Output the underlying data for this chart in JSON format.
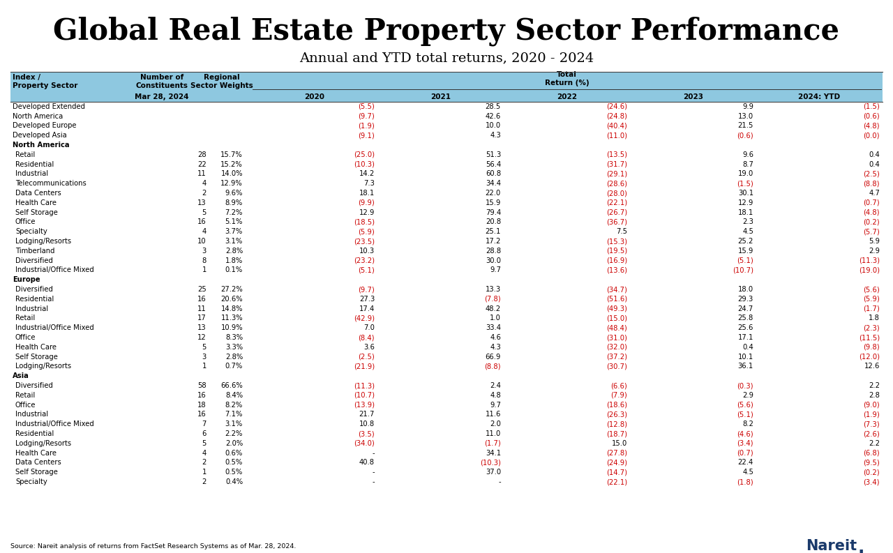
{
  "title": "Global Real Estate Property Sector Performance",
  "subtitle": "Annual and YTD total returns, 2020 - 2024",
  "footer": "Source: Nareit analysis of returns from FactSet Research Systems as of Mar. 28, 2024.",
  "col_header_bg": "#8EC8E0",
  "rows": [
    {
      "sector": "Developed Extended",
      "constituents": "",
      "weight": "",
      "y2020": "(5.5)",
      "y2021": "28.5",
      "y2022": "(24.6)",
      "y2023": "9.9",
      "ytd": "(1.5)",
      "bold": false,
      "indent": false,
      "is_group": false
    },
    {
      "sector": "North America",
      "constituents": "",
      "weight": "",
      "y2020": "(9.7)",
      "y2021": "42.6",
      "y2022": "(24.8)",
      "y2023": "13.0",
      "ytd": "(0.6)",
      "bold": false,
      "indent": false,
      "is_group": false
    },
    {
      "sector": "Developed Europe",
      "constituents": "",
      "weight": "",
      "y2020": "(1.9)",
      "y2021": "10.0",
      "y2022": "(40.4)",
      "y2023": "21.5",
      "ytd": "(4.8)",
      "bold": false,
      "indent": false,
      "is_group": false
    },
    {
      "sector": "Developed Asia",
      "constituents": "",
      "weight": "",
      "y2020": "(9.1)",
      "y2021": "4.3",
      "y2022": "(11.0)",
      "y2023": "(0.6)",
      "ytd": "(0.0)",
      "bold": false,
      "indent": false,
      "is_group": false
    },
    {
      "sector": "North America",
      "constituents": "",
      "weight": "",
      "y2020": "",
      "y2021": "",
      "y2022": "",
      "y2023": "",
      "ytd": "",
      "bold": true,
      "indent": false,
      "is_group": true
    },
    {
      "sector": "Retail",
      "constituents": "28",
      "weight": "15.7%",
      "y2020": "(25.0)",
      "y2021": "51.3",
      "y2022": "(13.5)",
      "y2023": "9.6",
      "ytd": "0.4",
      "bold": false,
      "indent": true,
      "is_group": false
    },
    {
      "sector": "Residential",
      "constituents": "22",
      "weight": "15.2%",
      "y2020": "(10.3)",
      "y2021": "56.4",
      "y2022": "(31.7)",
      "y2023": "8.7",
      "ytd": "0.4",
      "bold": false,
      "indent": true,
      "is_group": false
    },
    {
      "sector": "Industrial",
      "constituents": "11",
      "weight": "14.0%",
      "y2020": "14.2",
      "y2021": "60.8",
      "y2022": "(29.1)",
      "y2023": "19.0",
      "ytd": "(2.5)",
      "bold": false,
      "indent": true,
      "is_group": false
    },
    {
      "sector": "Telecommunications",
      "constituents": "4",
      "weight": "12.9%",
      "y2020": "7.3",
      "y2021": "34.4",
      "y2022": "(28.6)",
      "y2023": "(1.5)",
      "ytd": "(8.8)",
      "bold": false,
      "indent": true,
      "is_group": false
    },
    {
      "sector": "Data Centers",
      "constituents": "2",
      "weight": "9.6%",
      "y2020": "18.1",
      "y2021": "22.0",
      "y2022": "(28.0)",
      "y2023": "30.1",
      "ytd": "4.7",
      "bold": false,
      "indent": true,
      "is_group": false
    },
    {
      "sector": "Health Care",
      "constituents": "13",
      "weight": "8.9%",
      "y2020": "(9.9)",
      "y2021": "15.9",
      "y2022": "(22.1)",
      "y2023": "12.9",
      "ytd": "(0.7)",
      "bold": false,
      "indent": true,
      "is_group": false
    },
    {
      "sector": "Self Storage",
      "constituents": "5",
      "weight": "7.2%",
      "y2020": "12.9",
      "y2021": "79.4",
      "y2022": "(26.7)",
      "y2023": "18.1",
      "ytd": "(4.8)",
      "bold": false,
      "indent": true,
      "is_group": false
    },
    {
      "sector": "Office",
      "constituents": "16",
      "weight": "5.1%",
      "y2020": "(18.5)",
      "y2021": "20.8",
      "y2022": "(36.7)",
      "y2023": "2.3",
      "ytd": "(0.2)",
      "bold": false,
      "indent": true,
      "is_group": false
    },
    {
      "sector": "Specialty",
      "constituents": "4",
      "weight": "3.7%",
      "y2020": "(5.9)",
      "y2021": "25.1",
      "y2022": "7.5",
      "y2023": "4.5",
      "ytd": "(5.7)",
      "bold": false,
      "indent": true,
      "is_group": false
    },
    {
      "sector": "Lodging/Resorts",
      "constituents": "10",
      "weight": "3.1%",
      "y2020": "(23.5)",
      "y2021": "17.2",
      "y2022": "(15.3)",
      "y2023": "25.2",
      "ytd": "5.9",
      "bold": false,
      "indent": true,
      "is_group": false
    },
    {
      "sector": "Timberland",
      "constituents": "3",
      "weight": "2.8%",
      "y2020": "10.3",
      "y2021": "28.8",
      "y2022": "(19.5)",
      "y2023": "15.9",
      "ytd": "2.9",
      "bold": false,
      "indent": true,
      "is_group": false
    },
    {
      "sector": "Diversified",
      "constituents": "8",
      "weight": "1.8%",
      "y2020": "(23.2)",
      "y2021": "30.0",
      "y2022": "(16.9)",
      "y2023": "(5.1)",
      "ytd": "(11.3)",
      "bold": false,
      "indent": true,
      "is_group": false
    },
    {
      "sector": "Industrial/Office Mixed",
      "constituents": "1",
      "weight": "0.1%",
      "y2020": "(5.1)",
      "y2021": "9.7",
      "y2022": "(13.6)",
      "y2023": "(10.7)",
      "ytd": "(19.0)",
      "bold": false,
      "indent": true,
      "is_group": false
    },
    {
      "sector": "Europe",
      "constituents": "",
      "weight": "",
      "y2020": "",
      "y2021": "",
      "y2022": "",
      "y2023": "",
      "ytd": "",
      "bold": true,
      "indent": false,
      "is_group": true
    },
    {
      "sector": "Diversified",
      "constituents": "25",
      "weight": "27.2%",
      "y2020": "(9.7)",
      "y2021": "13.3",
      "y2022": "(34.7)",
      "y2023": "18.0",
      "ytd": "(5.6)",
      "bold": false,
      "indent": true,
      "is_group": false
    },
    {
      "sector": "Residential",
      "constituents": "16",
      "weight": "20.6%",
      "y2020": "27.3",
      "y2021": "(7.8)",
      "y2022": "(51.6)",
      "y2023": "29.3",
      "ytd": "(5.9)",
      "bold": false,
      "indent": true,
      "is_group": false
    },
    {
      "sector": "Industrial",
      "constituents": "11",
      "weight": "14.8%",
      "y2020": "17.4",
      "y2021": "48.2",
      "y2022": "(49.3)",
      "y2023": "24.7",
      "ytd": "(1.7)",
      "bold": false,
      "indent": true,
      "is_group": false
    },
    {
      "sector": "Retail",
      "constituents": "17",
      "weight": "11.3%",
      "y2020": "(42.9)",
      "y2021": "1.0",
      "y2022": "(15.0)",
      "y2023": "25.8",
      "ytd": "1.8",
      "bold": false,
      "indent": true,
      "is_group": false
    },
    {
      "sector": "Industrial/Office Mixed",
      "constituents": "13",
      "weight": "10.9%",
      "y2020": "7.0",
      "y2021": "33.4",
      "y2022": "(48.4)",
      "y2023": "25.6",
      "ytd": "(2.3)",
      "bold": false,
      "indent": true,
      "is_group": false
    },
    {
      "sector": "Office",
      "constituents": "12",
      "weight": "8.3%",
      "y2020": "(8.4)",
      "y2021": "4.6",
      "y2022": "(31.0)",
      "y2023": "17.1",
      "ytd": "(11.5)",
      "bold": false,
      "indent": true,
      "is_group": false
    },
    {
      "sector": "Health Care",
      "constituents": "5",
      "weight": "3.3%",
      "y2020": "3.6",
      "y2021": "4.3",
      "y2022": "(32.0)",
      "y2023": "0.4",
      "ytd": "(9.8)",
      "bold": false,
      "indent": true,
      "is_group": false
    },
    {
      "sector": "Self Storage",
      "constituents": "3",
      "weight": "2.8%",
      "y2020": "(2.5)",
      "y2021": "66.9",
      "y2022": "(37.2)",
      "y2023": "10.1",
      "ytd": "(12.0)",
      "bold": false,
      "indent": true,
      "is_group": false
    },
    {
      "sector": "Lodging/Resorts",
      "constituents": "1",
      "weight": "0.7%",
      "y2020": "(21.9)",
      "y2021": "(8.8)",
      "y2022": "(30.7)",
      "y2023": "36.1",
      "ytd": "12.6",
      "bold": false,
      "indent": true,
      "is_group": false
    },
    {
      "sector": "Asia",
      "constituents": "",
      "weight": "",
      "y2020": "",
      "y2021": "",
      "y2022": "",
      "y2023": "",
      "ytd": "",
      "bold": true,
      "indent": false,
      "is_group": true
    },
    {
      "sector": "Diversified",
      "constituents": "58",
      "weight": "66.6%",
      "y2020": "(11.3)",
      "y2021": "2.4",
      "y2022": "(6.6)",
      "y2023": "(0.3)",
      "ytd": "2.2",
      "bold": false,
      "indent": true,
      "is_group": false
    },
    {
      "sector": "Retail",
      "constituents": "16",
      "weight": "8.4%",
      "y2020": "(10.7)",
      "y2021": "4.8",
      "y2022": "(7.9)",
      "y2023": "2.9",
      "ytd": "2.8",
      "bold": false,
      "indent": true,
      "is_group": false
    },
    {
      "sector": "Office",
      "constituents": "18",
      "weight": "8.2%",
      "y2020": "(13.9)",
      "y2021": "9.7",
      "y2022": "(18.6)",
      "y2023": "(5.6)",
      "ytd": "(9.0)",
      "bold": false,
      "indent": true,
      "is_group": false
    },
    {
      "sector": "Industrial",
      "constituents": "16",
      "weight": "7.1%",
      "y2020": "21.7",
      "y2021": "11.6",
      "y2022": "(26.3)",
      "y2023": "(5.1)",
      "ytd": "(1.9)",
      "bold": false,
      "indent": true,
      "is_group": false
    },
    {
      "sector": "Industrial/Office Mixed",
      "constituents": "7",
      "weight": "3.1%",
      "y2020": "10.8",
      "y2021": "2.0",
      "y2022": "(12.8)",
      "y2023": "8.2",
      "ytd": "(7.3)",
      "bold": false,
      "indent": true,
      "is_group": false
    },
    {
      "sector": "Residential",
      "constituents": "6",
      "weight": "2.2%",
      "y2020": "(3.5)",
      "y2021": "11.0",
      "y2022": "(18.7)",
      "y2023": "(4.6)",
      "ytd": "(2.6)",
      "bold": false,
      "indent": true,
      "is_group": false
    },
    {
      "sector": "Lodging/Resorts",
      "constituents": "5",
      "weight": "2.0%",
      "y2020": "(34.0)",
      "y2021": "(1.7)",
      "y2022": "15.0",
      "y2023": "(3.4)",
      "ytd": "2.2",
      "bold": false,
      "indent": true,
      "is_group": false
    },
    {
      "sector": "Health Care",
      "constituents": "4",
      "weight": "0.6%",
      "y2020": "-",
      "y2021": "34.1",
      "y2022": "(27.8)",
      "y2023": "(0.7)",
      "ytd": "(6.8)",
      "bold": false,
      "indent": true,
      "is_group": false
    },
    {
      "sector": "Data Centers",
      "constituents": "2",
      "weight": "0.5%",
      "y2020": "40.8",
      "y2021": "(10.3)",
      "y2022": "(24.9)",
      "y2023": "22.4",
      "ytd": "(9.5)",
      "bold": false,
      "indent": true,
      "is_group": false
    },
    {
      "sector": "Self Storage",
      "constituents": "1",
      "weight": "0.5%",
      "y2020": "-",
      "y2021": "37.0",
      "y2022": "(14.7)",
      "y2023": "4.5",
      "ytd": "(0.2)",
      "bold": false,
      "indent": true,
      "is_group": false
    },
    {
      "sector": "Specialty",
      "constituents": "2",
      "weight": "0.4%",
      "y2020": "-",
      "y2021": "-",
      "y2022": "(22.1)",
      "y2023": "(1.8)",
      "ytd": "(3.4)",
      "bold": false,
      "indent": true,
      "is_group": false
    }
  ]
}
